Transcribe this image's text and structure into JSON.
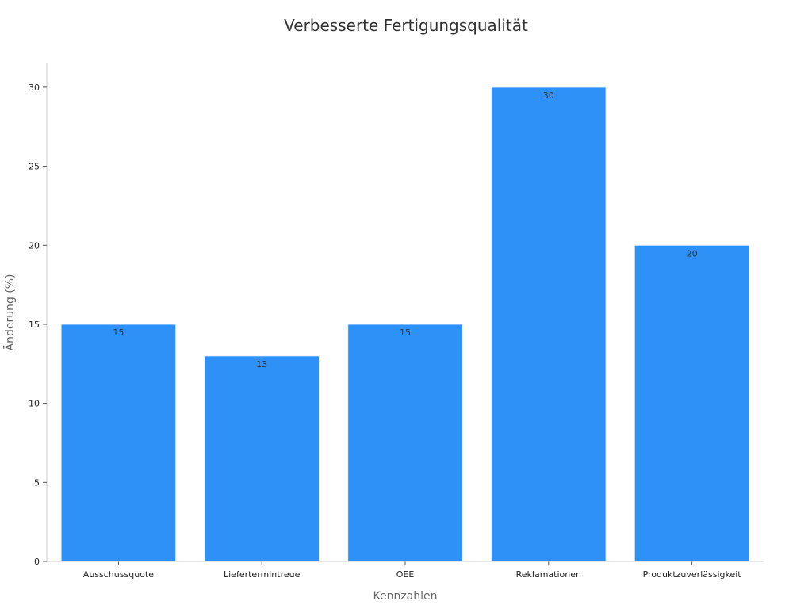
{
  "chart_data": {
    "type": "bar",
    "title": "Verbesserte Fertigungsqualität",
    "xlabel": "Kennzahlen",
    "ylabel": "Änderung (%)",
    "categories": [
      "Ausschussquote",
      "Liefertermintreue",
      "OEE",
      "Reklamationen",
      "Produktzuverlässigkeit"
    ],
    "values": [
      15,
      13,
      15,
      30,
      20
    ],
    "data_labels": [
      "15",
      "13",
      "15",
      "30",
      "20"
    ],
    "ylim": [
      0,
      31.5
    ],
    "yticks": [
      0,
      5,
      10,
      15,
      20,
      25,
      30
    ],
    "ytick_labels": [
      "0",
      "5",
      "10",
      "15",
      "20",
      "25",
      "30"
    ],
    "grid": false,
    "legend": "none",
    "colors": {
      "bar": "#2e91f8",
      "bar_edge": "#e8f1fb",
      "axis": "#cccccc",
      "tick_label": "#222222",
      "axis_label": "#666666",
      "data_label": "#333333",
      "title": "#333333"
    }
  }
}
